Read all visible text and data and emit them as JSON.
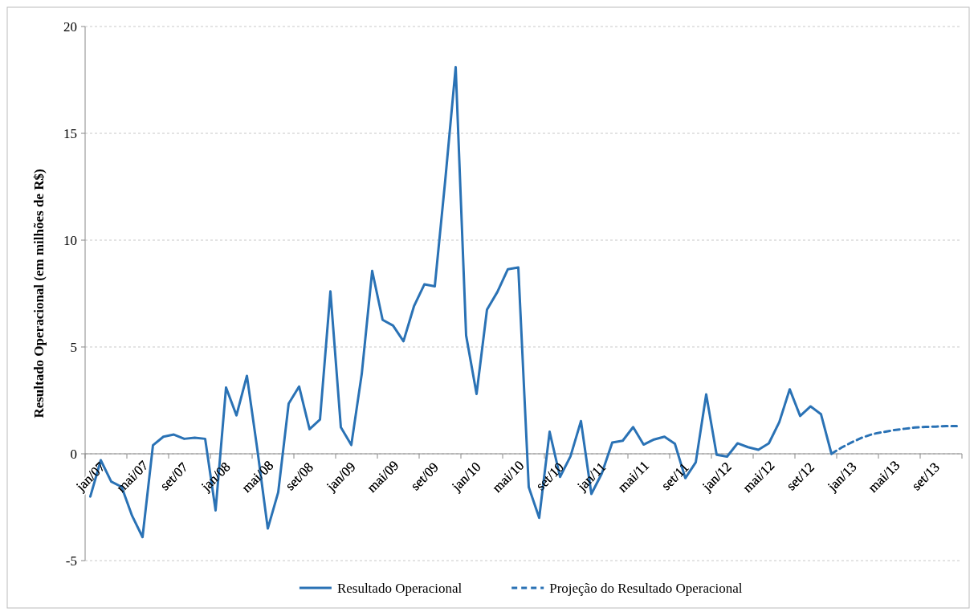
{
  "chart_data": {
    "type": "line",
    "ylabel": "Resultado Operacional (em milhões de R$)",
    "categories": [
      "jan/07",
      null,
      null,
      null,
      "mai/07",
      null,
      null,
      null,
      "set/07",
      null,
      null,
      null,
      "jan/08",
      null,
      null,
      null,
      "mai/08",
      null,
      null,
      null,
      "set/08",
      null,
      null,
      null,
      "jan/09",
      null,
      null,
      null,
      "mai/09",
      null,
      null,
      null,
      "set/09",
      null,
      null,
      null,
      "jan/10",
      null,
      null,
      null,
      "mai/10",
      null,
      null,
      null,
      "set/10",
      null,
      null,
      null,
      "jan/11",
      null,
      null,
      null,
      "mai/11",
      null,
      null,
      null,
      "set/11",
      null,
      null,
      null,
      "jan/12",
      null,
      null,
      null,
      "mai/12",
      null,
      null,
      null,
      "set/12",
      null,
      null,
      null,
      "jan/13",
      null,
      null,
      null,
      "mai/13",
      null,
      null,
      null,
      "set/13",
      null,
      null,
      null
    ],
    "series": [
      {
        "name": "Resultado Operacional",
        "color": "#2a72b5",
        "line_style": "solid",
        "values": [
          -2.0,
          -0.3,
          -1.3,
          -1.55,
          -2.9,
          -3.9,
          0.4,
          0.8,
          0.9,
          0.7,
          0.75,
          0.7,
          -2.65,
          3.1,
          1.8,
          3.65,
          0.2,
          -3.5,
          -1.8,
          2.35,
          3.15,
          1.15,
          1.6,
          7.6,
          1.24,
          0.41,
          3.73,
          8.56,
          6.27,
          6.0,
          5.27,
          6.9,
          7.93,
          7.84,
          12.8,
          18.1,
          5.54,
          2.8,
          6.75,
          7.58,
          8.64,
          8.72,
          -1.56,
          -3.0,
          1.03,
          -1.08,
          -0.12,
          1.53,
          -1.88,
          -0.92,
          0.53,
          0.61,
          1.25,
          0.43,
          0.67,
          0.8,
          0.47,
          -1.14,
          -0.4,
          2.78,
          -0.05,
          -0.13,
          0.49,
          0.31,
          0.19,
          0.49,
          1.48,
          3.02,
          1.77,
          2.22,
          1.85,
          0,
          null,
          null,
          null,
          null,
          null,
          null,
          null,
          null,
          null,
          null,
          null,
          null
        ]
      },
      {
        "name": "Projeção do Resultado Operacional",
        "color": "#2a72b5",
        "line_style": "dashed",
        "values": [
          null,
          null,
          null,
          null,
          null,
          null,
          null,
          null,
          null,
          null,
          null,
          null,
          null,
          null,
          null,
          null,
          null,
          null,
          null,
          null,
          null,
          null,
          null,
          null,
          null,
          null,
          null,
          null,
          null,
          null,
          null,
          null,
          null,
          null,
          null,
          null,
          null,
          null,
          null,
          null,
          null,
          null,
          null,
          null,
          null,
          null,
          null,
          null,
          null,
          null,
          null,
          null,
          null,
          null,
          null,
          null,
          null,
          null,
          null,
          null,
          null,
          null,
          null,
          null,
          null,
          null,
          null,
          null,
          null,
          null,
          null,
          0,
          0.3,
          0.55,
          0.77,
          0.93,
          1.02,
          1.11,
          1.17,
          1.23,
          1.26,
          1.27,
          1.3,
          1.3
        ]
      }
    ],
    "ylim": [
      -5,
      20
    ],
    "yticks": [
      -5,
      0,
      5,
      10,
      15,
      20
    ],
    "grid": "y",
    "legend": "bottom"
  }
}
